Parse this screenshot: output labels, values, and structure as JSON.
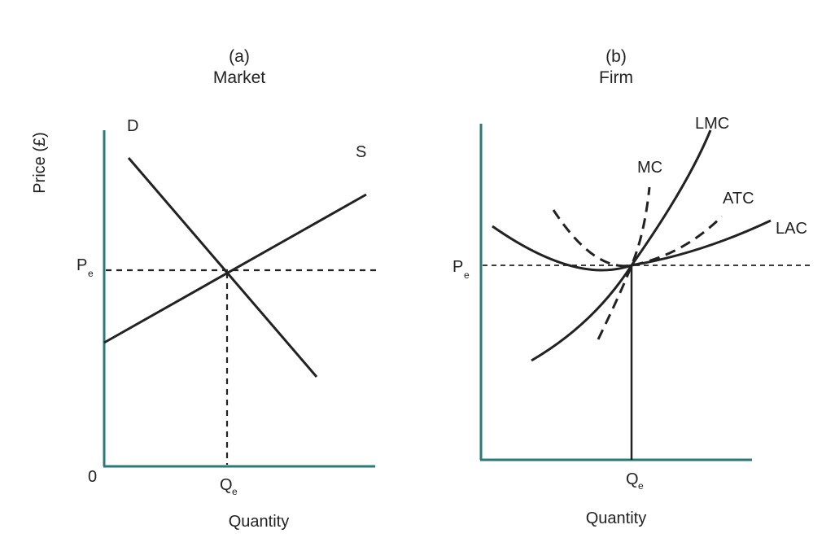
{
  "colors": {
    "axis": "#2a7a78",
    "ink": "#222222"
  },
  "panel_a": {
    "letter": "(a)",
    "title": "Market",
    "y_axis_label": "Price (£)",
    "x_axis_label": "Quantity",
    "origin": "0",
    "price_main": "P",
    "price_sub": "e",
    "qty_main": "Q",
    "qty_sub": "e",
    "curves": {
      "demand": "D",
      "supply": "S"
    }
  },
  "panel_b": {
    "letter": "(b)",
    "title": "Firm",
    "x_axis_label": "Quantity",
    "price_main": "P",
    "price_sub": "e",
    "qty_main": "Q",
    "qty_sub": "e",
    "curves": {
      "lmc": "LMC",
      "mc": "MC",
      "atc": "ATC",
      "lac": "LAC"
    }
  }
}
